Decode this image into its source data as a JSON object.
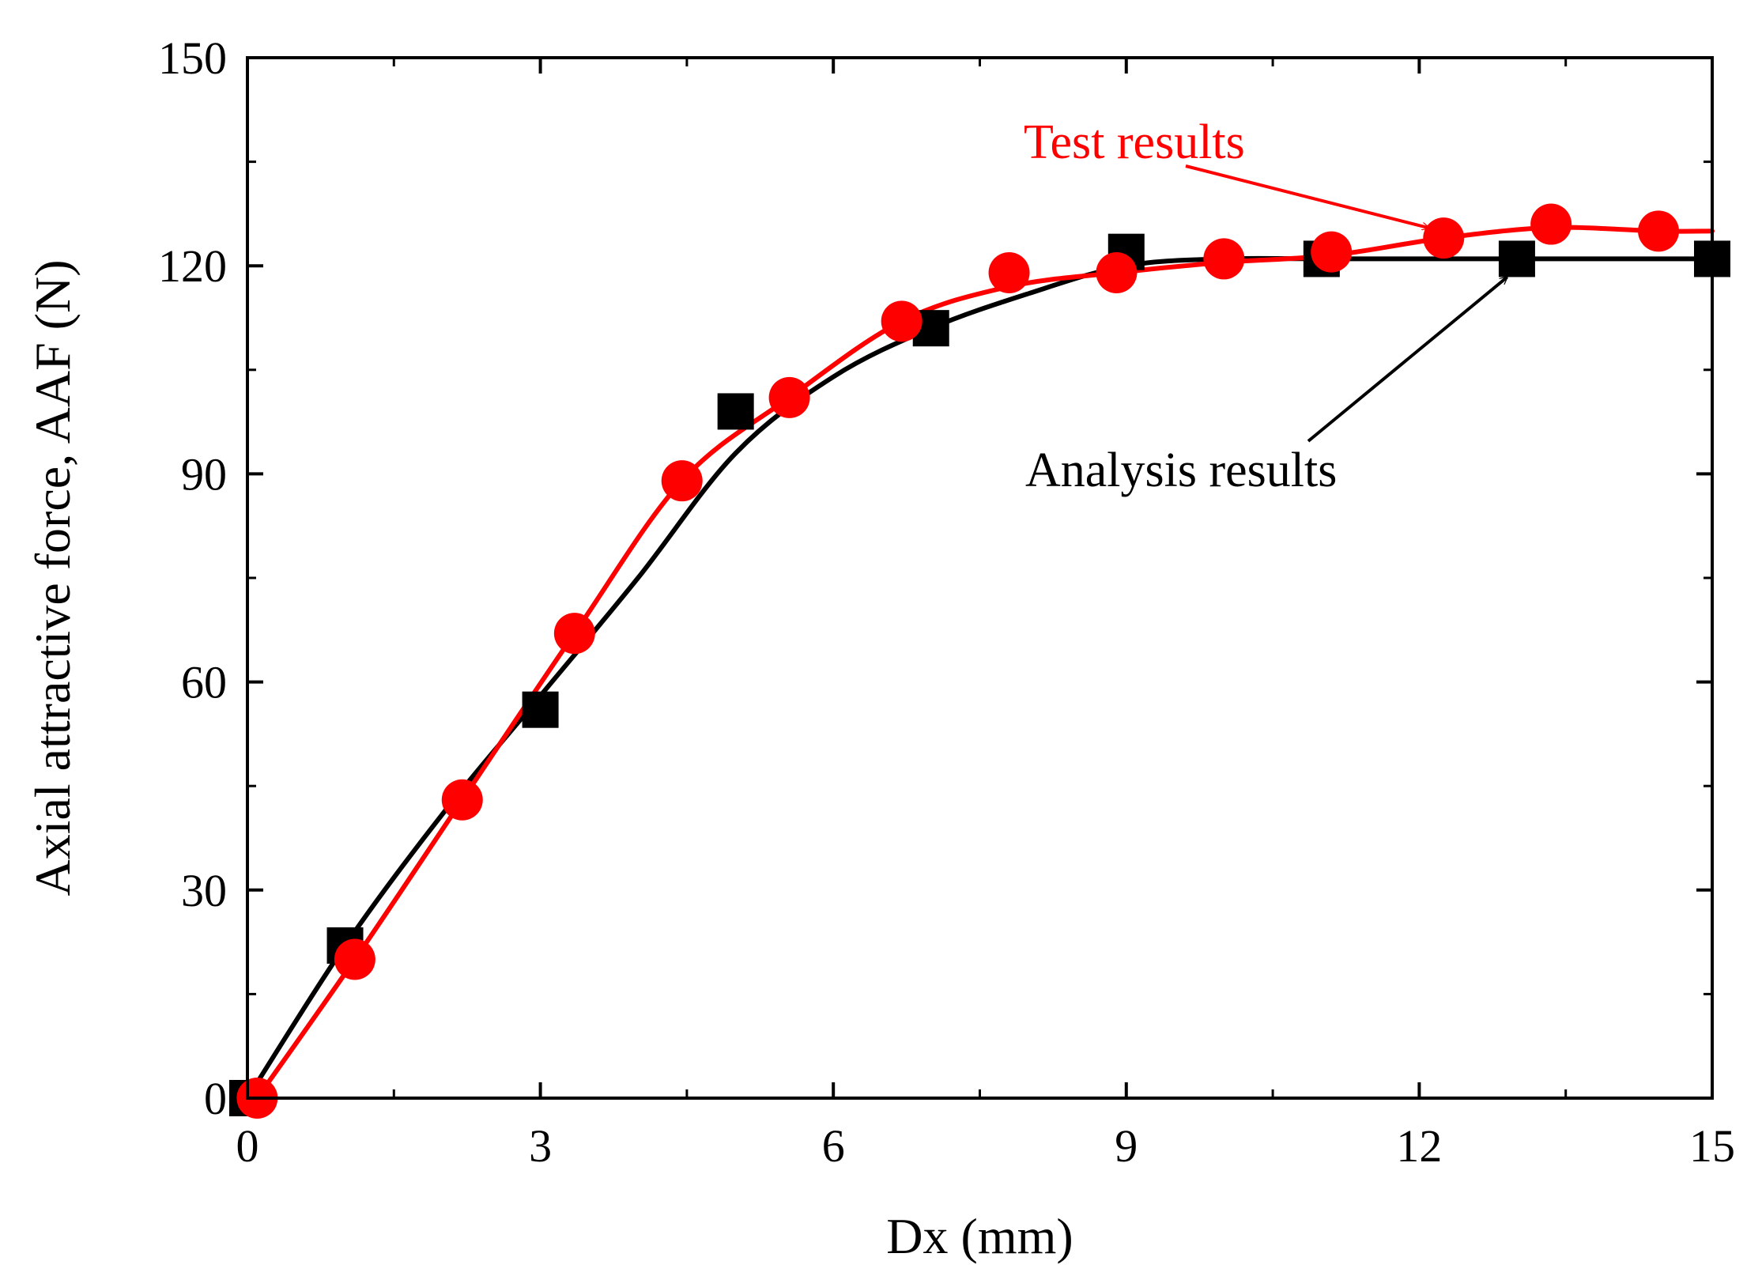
{
  "chart_data": {
    "type": "line",
    "title": "",
    "xlabel": "Dx (mm)",
    "ylabel": "Axial attractive force, AAF (N)",
    "xlim": [
      0,
      15
    ],
    "ylim": [
      0,
      150
    ],
    "xticks": [
      0,
      3,
      6,
      9,
      12,
      15
    ],
    "yticks": [
      0,
      30,
      60,
      90,
      120,
      150
    ],
    "xticks_minor": [
      1.5,
      4.5,
      7.5,
      10.5,
      13.5
    ],
    "yticks_minor": [
      15,
      45,
      75,
      105,
      135
    ],
    "grid": false,
    "legend": "none",
    "series": [
      {
        "name": "Analysis results",
        "color": "#000000",
        "marker": "square",
        "points": [
          [
            0,
            0
          ],
          [
            1,
            22
          ],
          [
            3,
            56
          ],
          [
            5,
            99
          ],
          [
            7,
            111
          ],
          [
            9,
            122
          ],
          [
            11,
            121
          ],
          [
            13,
            121
          ],
          [
            15,
            121
          ]
        ],
        "curve": [
          [
            0,
            0
          ],
          [
            1,
            22
          ],
          [
            2,
            41
          ],
          [
            3,
            58
          ],
          [
            4,
            75
          ],
          [
            5,
            93
          ],
          [
            6,
            104
          ],
          [
            7,
            111
          ],
          [
            8,
            116
          ],
          [
            9,
            120
          ],
          [
            10,
            121
          ],
          [
            11,
            121
          ],
          [
            12,
            121
          ],
          [
            13,
            121
          ],
          [
            14,
            121
          ],
          [
            15,
            121
          ]
        ]
      },
      {
        "name": "Test results",
        "color": "#ff0000",
        "marker": "circle",
        "points": [
          [
            0.1,
            0
          ],
          [
            1.1,
            20
          ],
          [
            2.2,
            43
          ],
          [
            3.35,
            67
          ],
          [
            4.45,
            89
          ],
          [
            5.55,
            101
          ],
          [
            6.7,
            112
          ],
          [
            7.8,
            119
          ],
          [
            8.9,
            119
          ],
          [
            10,
            121
          ],
          [
            11.1,
            122
          ],
          [
            12.25,
            124
          ],
          [
            13.35,
            126
          ],
          [
            14.45,
            125
          ]
        ],
        "curve": [
          [
            0.1,
            0
          ],
          [
            1.1,
            20
          ],
          [
            2.2,
            43
          ],
          [
            3.35,
            67
          ],
          [
            4.45,
            89
          ],
          [
            5.55,
            101
          ],
          [
            6.7,
            112
          ],
          [
            7.8,
            117
          ],
          [
            8.9,
            119
          ],
          [
            10,
            120.5
          ],
          [
            11.1,
            121.5
          ],
          [
            12.25,
            124
          ],
          [
            13.35,
            125.5
          ],
          [
            14.45,
            125
          ],
          [
            15,
            125
          ]
        ]
      }
    ],
    "annotations": [
      {
        "text": "Test results",
        "color": "#ff0000",
        "target_x": 12.1,
        "target_y": 125
      },
      {
        "text": "Analysis results",
        "color": "#000000",
        "target_x": 12.9,
        "target_y": 119.5
      }
    ]
  }
}
